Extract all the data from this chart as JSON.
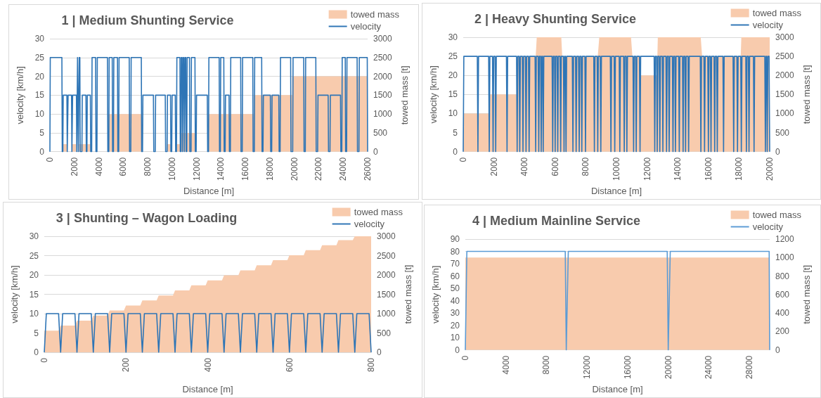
{
  "chart_data": [
    {
      "type": "line",
      "title": "1 | Medium Shunting Service",
      "xlabel": "Distance [m]",
      "ylabel": "velocity [km/h]",
      "y2label": "towed mass [t]",
      "xlim": [
        0,
        26000
      ],
      "xticks": [
        0,
        2000,
        4000,
        6000,
        8000,
        10000,
        12000,
        14000,
        16000,
        18000,
        20000,
        22000,
        24000,
        26000
      ],
      "ylim": [
        0,
        30
      ],
      "yticks": [
        0,
        5,
        10,
        15,
        20,
        25,
        30
      ],
      "y2lim": [
        0,
        3000
      ],
      "y2ticks": [
        0,
        500,
        1000,
        1500,
        2000,
        2500,
        3000
      ],
      "grid": "y",
      "legend": "top right",
      "series": [
        {
          "name": "towed mass",
          "type": "area",
          "axis": "y2",
          "color": "#f8cbad",
          "x": [
            0,
            1010,
            1010,
            1400,
            1400,
            1780,
            1780,
            2150,
            2150,
            2370,
            2370,
            3330,
            3330,
            4770,
            4770,
            7530,
            7530,
            9610,
            9610,
            9890,
            9890,
            10380,
            10380,
            10660,
            10660,
            10750,
            10750,
            11930,
            11930,
            12960,
            12960,
            16680,
            16680,
            19820,
            19820,
            26000
          ],
          "values": [
            0,
            0,
            200,
            200,
            0,
            0,
            200,
            200,
            0,
            0,
            200,
            200,
            0,
            0,
            1000,
            1000,
            0,
            0,
            200,
            200,
            0,
            0,
            200,
            200,
            0,
            0,
            500,
            500,
            0,
            0,
            1000,
            1000,
            1500,
            1500,
            2000,
            2000
          ]
        },
        {
          "name": "velocity",
          "type": "line",
          "color": "#2e75b6",
          "x": [
            0,
            30,
            980,
            1010,
            1060,
            1090,
            1390,
            1420,
            1460,
            1490,
            1770,
            1800,
            1830,
            1860,
            2170,
            2200,
            2230,
            2260,
            2300,
            2330,
            2370,
            2400,
            2450,
            2480,
            2620,
            2650,
            2950,
            2980,
            3030,
            3060,
            3310,
            3340,
            3420,
            3450,
            3740,
            3770,
            3850,
            3880,
            4710,
            4740,
            4820,
            4850,
            5100,
            5130,
            5200,
            5230,
            5530,
            5560,
            5630,
            5660,
            6490,
            6520,
            6620,
            6650,
            7480,
            7510,
            7580,
            7610,
            8470,
            8500,
            8620,
            8650,
            9440,
            9470,
            9590,
            9620,
            9870,
            9900,
            9970,
            10000,
            10260,
            10290,
            10360,
            10390,
            10640,
            10670,
            10720,
            10750,
            10820,
            10850,
            10890,
            10920,
            10970,
            11000,
            11040,
            11070,
            11120,
            11150,
            11200,
            11230,
            11420,
            11450,
            11550,
            11580,
            11870,
            11900,
            11970,
            12000,
            12880,
            12910,
            12980,
            13010,
            13850,
            13880,
            13950,
            13980,
            14230,
            14260,
            14340,
            14370,
            14660,
            14690,
            14770,
            14800,
            15610,
            15640,
            15740,
            15770,
            16600,
            16630,
            16730,
            16760,
            17330,
            17360,
            17440,
            17470,
            18040,
            18070,
            18150,
            18180,
            18730,
            18760,
            18840,
            18870,
            19700,
            19730,
            19870,
            19900,
            20770,
            20800,
            20900,
            20930,
            21760,
            21790,
            21910,
            21940,
            22770,
            22800,
            22920,
            22950,
            23780,
            23810,
            23890,
            23920,
            24170,
            24200,
            24280,
            24310,
            25140,
            25170,
            25290,
            25320,
            25970,
            26000
          ],
          "values": [
            0,
            25,
            25,
            0,
            0,
            15,
            15,
            0,
            0,
            15,
            15,
            0,
            0,
            15,
            15,
            0,
            0,
            25,
            25,
            0,
            0,
            25,
            25,
            0,
            0,
            15,
            15,
            0,
            0,
            15,
            15,
            0,
            0,
            25,
            25,
            0,
            0,
            25,
            25,
            0,
            0,
            25,
            25,
            0,
            0,
            25,
            25,
            0,
            0,
            25,
            25,
            0,
            0,
            25,
            25,
            0,
            0,
            15,
            15,
            0,
            0,
            15,
            15,
            0,
            0,
            15,
            15,
            0,
            0,
            15,
            15,
            0,
            0,
            25,
            25,
            0,
            0,
            25,
            25,
            0,
            0,
            25,
            25,
            0,
            0,
            25,
            25,
            0,
            0,
            25,
            25,
            0,
            0,
            25,
            25,
            0,
            0,
            15,
            15,
            0,
            0,
            25,
            25,
            0,
            0,
            25,
            25,
            0,
            0,
            15,
            15,
            0,
            0,
            25,
            25,
            0,
            0,
            25,
            25,
            0,
            0,
            25,
            25,
            0,
            0,
            15,
            15,
            0,
            0,
            15,
            15,
            0,
            0,
            25,
            25,
            0,
            0,
            25,
            25,
            0,
            0,
            25,
            25,
            0,
            0,
            15,
            15,
            0,
            0,
            15,
            15,
            0,
            0,
            25,
            25,
            0,
            0,
            25,
            25,
            0,
            0,
            25,
            25,
            0
          ]
        }
      ]
    },
    {
      "type": "line",
      "title": "2 | Heavy Shunting Service",
      "xlabel": "Distance [m]",
      "ylabel": "velocity [km/h]",
      "y2label": "towed mass [t]",
      "xlim": [
        0,
        20000
      ],
      "xticks": [
        0,
        2000,
        4000,
        6000,
        8000,
        10000,
        12000,
        14000,
        16000,
        18000,
        20000
      ],
      "ylim": [
        0,
        30
      ],
      "yticks": [
        0,
        5,
        10,
        15,
        20,
        25,
        30
      ],
      "y2lim": [
        0,
        3000
      ],
      "y2ticks": [
        0,
        500,
        1000,
        1500,
        2000,
        2500,
        3000
      ],
      "grid": "y",
      "legend": "top right",
      "series": [
        {
          "name": "towed mass",
          "type": "area",
          "axis": "y2",
          "color": "#f8cbad",
          "x": [
            0,
            1750,
            1750,
            3520,
            3520,
            4730,
            4800,
            6400,
            6460,
            8780,
            8880,
            10950,
            11040,
            11040,
            11540,
            11540,
            12640,
            12700,
            15500,
            15590,
            18110,
            18150,
            20000
          ],
          "values": [
            1000,
            1000,
            1500,
            1500,
            2500,
            2500,
            3000,
            3000,
            2500,
            2500,
            3000,
            3000,
            2500,
            2500,
            2500,
            2000,
            2000,
            3000,
            3000,
            2500,
            2500,
            3000,
            3000
          ]
        },
        {
          "name": "velocity",
          "type": "line",
          "color": "#2e75b6",
          "x": [
            0,
            40,
            920,
            960,
            1000,
            1660,
            1700,
            1740,
            1910,
            1950,
            1990,
            2080,
            2120,
            2160,
            2820,
            2860,
            2900,
            3480,
            3520,
            3560,
            3650,
            3690,
            3730,
            3860,
            3900,
            3940,
            4060,
            4100,
            4140,
            4260,
            4300,
            4340,
            4690,
            4730,
            4770,
            4890,
            4930,
            4970,
            5050,
            5090,
            5130,
            5180,
            5220,
            5260,
            5800,
            5840,
            5880,
            5960,
            6000,
            6040,
            6130,
            6170,
            6210,
            6320,
            6360,
            6400,
            6540,
            6580,
            6620,
            6670,
            6710,
            6750,
            7120,
            7160,
            7200,
            7330,
            7370,
            7410,
            7530,
            7570,
            7610,
            7700,
            7740,
            7780,
            7940,
            7980,
            8020,
            8520,
            8560,
            8600,
            8740,
            8780,
            8820,
            8940,
            8980,
            9020,
            9600,
            9640,
            9680,
            9850,
            9890,
            9930,
            10180,
            10220,
            10260,
            10470,
            10510,
            10550,
            10640,
            10680,
            10720,
            11080,
            11120,
            11160,
            11250,
            11290,
            11330,
            11500,
            11540,
            11580,
            12460,
            12500,
            12540,
            12620,
            12660,
            12700,
            12790,
            12830,
            12870,
            12990,
            13030,
            13070,
            13230,
            13270,
            13310,
            13400,
            13440,
            13480,
            13650,
            13690,
            13730,
            13810,
            13850,
            13890,
            14060,
            14100,
            14140,
            14310,
            14350,
            14390,
            14470,
            14510,
            14550,
            14670,
            14710,
            14750,
            15470,
            15510,
            15550,
            15710,
            15750,
            15790,
            15960,
            16000,
            16040,
            16130,
            16170,
            16210,
            16370,
            16410,
            16450,
            16540,
            16580,
            16620,
            16950,
            16990,
            17030,
            17610,
            17650,
            17690,
            17860,
            17900,
            17940,
            18110,
            18150,
            18190,
            18440,
            18480,
            18520,
            18610,
            18650,
            18690,
            18940,
            18980,
            19020,
            19680,
            19720,
            19760,
            19800,
            19840,
            19880,
            19960,
            20000
          ],
          "values": [
            0,
            25,
            25,
            0,
            25,
            25,
            0,
            25,
            25,
            0,
            25,
            25,
            0,
            25,
            25,
            0,
            25,
            25,
            0,
            25,
            25,
            0,
            25,
            25,
            0,
            25,
            25,
            0,
            25,
            25,
            0,
            25,
            25,
            0,
            25,
            25,
            0,
            25,
            25,
            0,
            25,
            25,
            0,
            25,
            25,
            0,
            25,
            25,
            0,
            25,
            25,
            0,
            25,
            25,
            0,
            25,
            25,
            0,
            25,
            25,
            0,
            25,
            25,
            0,
            25,
            25,
            0,
            25,
            25,
            0,
            25,
            25,
            0,
            25,
            25,
            0,
            25,
            25,
            0,
            25,
            25,
            0,
            25,
            25,
            0,
            25,
            25,
            0,
            25,
            25,
            0,
            25,
            25,
            0,
            25,
            25,
            0,
            25,
            25,
            0,
            25,
            25,
            0,
            25,
            25,
            0,
            25,
            25,
            0,
            25,
            25,
            0,
            25,
            25,
            0,
            25,
            25,
            0,
            25,
            25,
            0,
            25,
            25,
            0,
            25,
            25,
            0,
            25,
            25,
            0,
            25,
            25,
            0,
            25,
            25,
            0,
            25,
            25,
            0,
            25,
            25,
            0,
            25,
            25,
            0,
            25,
            25,
            0,
            25,
            25,
            0,
            25,
            25,
            0,
            25,
            25,
            0,
            25,
            25,
            0,
            25,
            25,
            0,
            25,
            25,
            0,
            25,
            25,
            0,
            25,
            25,
            0,
            25,
            25,
            0,
            25,
            25,
            0,
            25,
            25,
            0,
            25,
            25,
            0,
            25,
            25,
            0,
            25,
            25,
            0,
            25,
            25,
            0
          ]
        }
      ]
    },
    {
      "type": "line",
      "title": "3 | Shunting – Wagon Loading",
      "xlabel": "Distance [m]",
      "ylabel": "velocity [km/h]",
      "y2label": "towed mass [t]",
      "xlim": [
        0,
        800
      ],
      "xticks": [
        0,
        200,
        400,
        600,
        800
      ],
      "ylim": [
        0,
        30
      ],
      "yticks": [
        0,
        5,
        10,
        15,
        20,
        25,
        30
      ],
      "y2lim": [
        0,
        3000
      ],
      "y2ticks": [
        0,
        500,
        1000,
        1500,
        2000,
        2500,
        3000
      ],
      "grid": "y",
      "legend": "top right",
      "series": [
        {
          "name": "towed mass",
          "type": "area",
          "axis": "y2",
          "color": "#f8cbad",
          "x": [
            0,
            35,
            40,
            75,
            80,
            115,
            120,
            155,
            160,
            195,
            200,
            235,
            240,
            275,
            280,
            315,
            320,
            355,
            360,
            395,
            400,
            435,
            440,
            475,
            480,
            515,
            520,
            555,
            560,
            595,
            600,
            635,
            640,
            675,
            680,
            715,
            720,
            755,
            760,
            800
          ],
          "values": [
            560,
            560,
            690,
            690,
            820,
            820,
            950,
            950,
            1080,
            1080,
            1210,
            1210,
            1340,
            1340,
            1470,
            1470,
            1600,
            1600,
            1730,
            1730,
            1860,
            1860,
            1990,
            1990,
            2120,
            2120,
            2250,
            2250,
            2380,
            2380,
            2510,
            2510,
            2640,
            2640,
            2770,
            2770,
            2900,
            2900,
            3000,
            3000
          ]
        },
        {
          "name": "velocity",
          "type": "line",
          "color": "#2e75b6",
          "x": [
            0,
            5,
            35,
            40,
            45,
            75,
            80,
            85,
            115,
            120,
            125,
            155,
            160,
            165,
            195,
            200,
            205,
            235,
            240,
            245,
            275,
            280,
            285,
            315,
            320,
            325,
            355,
            360,
            365,
            395,
            400,
            405,
            435,
            440,
            445,
            475,
            480,
            485,
            515,
            520,
            525,
            555,
            560,
            565,
            595,
            600,
            605,
            635,
            640,
            645,
            675,
            680,
            685,
            715,
            720,
            725,
            755,
            760,
            765,
            795,
            800
          ],
          "values": [
            0,
            10,
            10,
            0,
            10,
            10,
            0,
            10,
            10,
            0,
            10,
            10,
            0,
            10,
            10,
            0,
            10,
            10,
            0,
            10,
            10,
            0,
            10,
            10,
            0,
            10,
            10,
            0,
            10,
            10,
            0,
            10,
            10,
            0,
            10,
            10,
            0,
            10,
            10,
            0,
            10,
            10,
            0,
            10,
            10,
            0,
            10,
            10,
            0,
            10,
            10,
            0,
            10,
            10,
            0,
            10,
            10,
            0,
            10,
            10,
            0
          ]
        }
      ]
    },
    {
      "type": "line",
      "title": "4 | Medium Mainline Service",
      "xlabel": "Distance [m]",
      "ylabel": "velocity [km/h]",
      "y2label": "towed mass [t]",
      "xlim": [
        0,
        30000
      ],
      "xticks": [
        0,
        4000,
        8000,
        12000,
        16000,
        20000,
        24000,
        28000
      ],
      "ylim": [
        0,
        90
      ],
      "yticks": [
        0,
        10,
        20,
        30,
        40,
        50,
        60,
        70,
        80,
        90
      ],
      "y2lim": [
        0,
        1200
      ],
      "y2ticks": [
        0,
        200,
        400,
        600,
        800,
        1000,
        1200
      ],
      "grid": "y",
      "legend": "top right",
      "series": [
        {
          "name": "towed mass",
          "type": "area",
          "axis": "y2",
          "color": "#f8cbad",
          "x": [
            0,
            30000
          ],
          "values": [
            1000,
            1000
          ]
        },
        {
          "name": "velocity",
          "type": "line",
          "color": "#5b9bd5",
          "x": [
            0,
            150,
            9850,
            9950,
            10150,
            19900,
            20000,
            20200,
            29950,
            30000
          ],
          "values": [
            0,
            80,
            80,
            0,
            80,
            80,
            0,
            80,
            80,
            0
          ]
        }
      ]
    }
  ]
}
